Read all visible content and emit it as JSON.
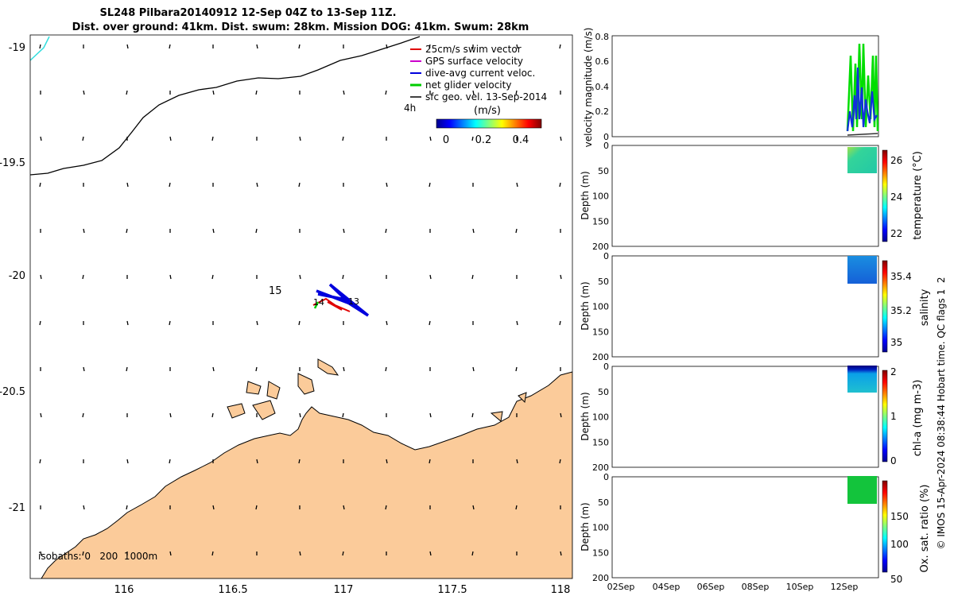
{
  "title": {
    "line1": "SL248 Pilbara20140912 12-Sep 04Z to 13-Sep 11Z.",
    "line2": "Dist. over ground: 41km. Dist. swum: 28km. Mission DOG: 41km. Swum: 28km"
  },
  "map": {
    "lat_ticks": [
      "-19",
      "-19.5",
      "-20",
      "-20.5",
      "-21"
    ],
    "lon_ticks": [
      "116",
      "116.5",
      "117",
      "117.5",
      "118"
    ],
    "legend": [
      {
        "label": "25cm/s swim vector",
        "color": "#e00000"
      },
      {
        "label": "GPS surface velocity",
        "color": "#cc00cc"
      },
      {
        "label": "dive-avg current veloc.",
        "color": "#0000dd"
      },
      {
        "label": "net glider velocity",
        "color": "#00cc00"
      },
      {
        "label": "sfc geo. vel. 13-Sep-2014",
        "color": "#000000"
      }
    ],
    "scale_label": "4h",
    "colorbar_title": "(m/s)",
    "colorbar_ticks": [
      "0",
      "0.2",
      "0.4"
    ],
    "track_labels": {
      "a": "15",
      "b": "14",
      "c": "13"
    },
    "isobaths": "isobaths: 0   200  1000m"
  },
  "panels": {
    "velocity": {
      "ylabel": "velocity magnitude (m/s)",
      "ticks": [
        "0.8",
        "0.6",
        "0.4",
        "0.2",
        "0"
      ]
    },
    "depth_ticks": [
      "0",
      "50",
      "100",
      "150",
      "200"
    ],
    "depth_label": "Depth (m)",
    "temperature": {
      "label": "temperature (°C)",
      "ticks": [
        "26",
        "24",
        "22"
      ]
    },
    "salinity": {
      "label": "salinity",
      "ticks": [
        "35.4",
        "35.2",
        "35"
      ]
    },
    "chla": {
      "label": "chl-a (mg m-3)",
      "ticks": [
        "2",
        "1",
        "0"
      ]
    },
    "oxygen": {
      "label": "Ox. sat. ratio (%)",
      "ticks": [
        "150",
        "100",
        "50"
      ]
    },
    "time_ticks": [
      "02Sep",
      "04Sep",
      "06Sep",
      "08Sep",
      "10Sep",
      "12Sep"
    ]
  },
  "footer": "© IMOS 15-Apr-2024 08:38:44 Hobart time. QC flags 1  2"
}
